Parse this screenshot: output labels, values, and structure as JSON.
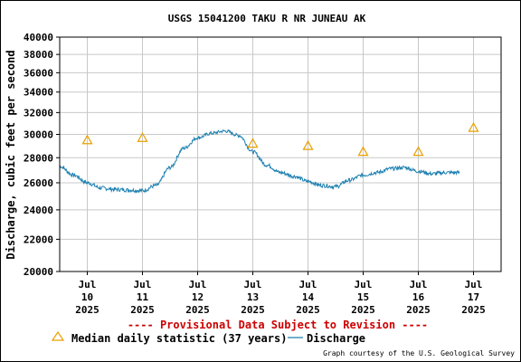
{
  "chart_data": {
    "type": "line",
    "title": "USGS 15041200 TAKU R NR JUNEAU AK",
    "ylabel": "Discharge, cubic feet per second",
    "xlabel": "",
    "ylim": [
      20000,
      40000
    ],
    "y_scale": "log",
    "y_ticks": [
      "20000",
      "22000",
      "24000",
      "26000",
      "28000",
      "30000",
      "32000",
      "34000",
      "36000",
      "38000",
      "40000"
    ],
    "y_tick_values": [
      20000,
      22000,
      24000,
      26000,
      28000,
      30000,
      32000,
      34000,
      36000,
      38000,
      40000
    ],
    "x_ticks": [
      {
        "day": 10,
        "l1": "Jul",
        "l2": "10",
        "l3": "2025"
      },
      {
        "day": 11,
        "l1": "Jul",
        "l2": "11",
        "l3": "2025"
      },
      {
        "day": 12,
        "l1": "Jul",
        "l2": "12",
        "l3": "2025"
      },
      {
        "day": 13,
        "l1": "Jul",
        "l2": "13",
        "l3": "2025"
      },
      {
        "day": 14,
        "l1": "Jul",
        "l2": "14",
        "l3": "2025"
      },
      {
        "day": 15,
        "l1": "Jul",
        "l2": "15",
        "l3": "2025"
      },
      {
        "day": 16,
        "l1": "Jul",
        "l2": "16",
        "l3": "2025"
      },
      {
        "day": 17,
        "l1": "Jul",
        "l2": "17",
        "l3": "2025"
      }
    ],
    "grid": true,
    "series": [
      {
        "name": "Discharge",
        "color": "#1a7fb0",
        "x_day": [
          9.5,
          9.75,
          10.0,
          10.25,
          10.5,
          10.75,
          11.0,
          11.25,
          11.5,
          11.75,
          12.0,
          12.25,
          12.5,
          12.75,
          13.0,
          13.25,
          13.5,
          13.75,
          14.0,
          14.25,
          14.5,
          14.75,
          15.0,
          15.25,
          15.5,
          15.75,
          16.0,
          16.25,
          16.5,
          16.75
        ],
        "y": [
          27300,
          26600,
          26000,
          25600,
          25500,
          25450,
          25400,
          25800,
          27200,
          28800,
          29700,
          30100,
          30300,
          29900,
          28500,
          27400,
          26800,
          26500,
          26100,
          25800,
          25700,
          26200,
          26600,
          26800,
          27100,
          27200,
          26900,
          26700,
          26800,
          26800
        ]
      },
      {
        "name": "Median daily statistic (37 years)",
        "marker": "triangle",
        "color": "#e8a000",
        "x_day": [
          10,
          11,
          12,
          13,
          14,
          15,
          16,
          17
        ],
        "y": [
          29500,
          29700,
          null,
          29200,
          29000,
          28500,
          28500,
          30600
        ]
      }
    ]
  },
  "footer": {
    "warning": "---- Provisional Data Subject to Revision ----",
    "warning_color": "#cc0000",
    "legend_median": "Median daily statistic (37 years)",
    "legend_discharge": "Discharge",
    "credit": "Graph courtesy of the U.S. Geological Survey"
  }
}
